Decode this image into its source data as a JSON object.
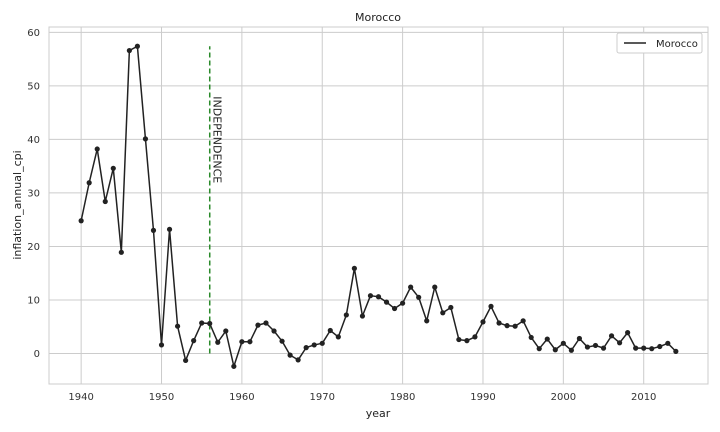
{
  "chart_data": {
    "type": "line",
    "title": "Morocco",
    "xlabel": "year",
    "ylabel": "inflation_annual_cpi",
    "xlim": [
      1936,
      2018
    ],
    "ylim": [
      -5.7,
      61
    ],
    "xticks": [
      1940,
      1950,
      1960,
      1970,
      1980,
      1990,
      2000,
      2010
    ],
    "yticks": [
      0,
      10,
      20,
      30,
      40,
      50,
      60
    ],
    "grid": true,
    "legend_position": "top-right",
    "series": [
      {
        "name": "Morocco",
        "color": "#222222",
        "marker": "circle",
        "x": [
          1940,
          1941,
          1942,
          1943,
          1944,
          1945,
          1946,
          1947,
          1948,
          1949,
          1950,
          1951,
          1952,
          1953,
          1954,
          1955,
          1956,
          1957,
          1958,
          1959,
          1960,
          1961,
          1962,
          1963,
          1964,
          1965,
          1966,
          1967,
          1968,
          1969,
          1970,
          1971,
          1972,
          1973,
          1974,
          1975,
          1976,
          1977,
          1978,
          1979,
          1980,
          1981,
          1982,
          1983,
          1984,
          1985,
          1986,
          1987,
          1988,
          1989,
          1990,
          1991,
          1992,
          1993,
          1994,
          1995,
          1996,
          1997,
          1998,
          1999,
          2000,
          2001,
          2002,
          2003,
          2004,
          2005,
          2006,
          2007,
          2008,
          2009,
          2010,
          2011,
          2012,
          2013,
          2014
        ],
        "y": [
          24.8,
          31.9,
          38.2,
          28.4,
          34.6,
          18.9,
          56.6,
          57.4,
          40.1,
          23.0,
          1.6,
          23.2,
          5.1,
          -1.3,
          2.4,
          5.7,
          5.6,
          2.1,
          4.2,
          -2.4,
          2.2,
          2.2,
          5.3,
          5.7,
          4.2,
          2.3,
          -0.3,
          -1.2,
          1.1,
          1.6,
          1.9,
          4.3,
          3.1,
          7.2,
          15.9,
          7.0,
          10.8,
          10.6,
          9.6,
          8.4,
          9.4,
          12.4,
          10.5,
          6.1,
          12.4,
          7.6,
          8.6,
          2.6,
          2.4,
          3.1,
          5.9,
          8.8,
          5.7,
          5.2,
          5.1,
          6.1,
          3.0,
          0.9,
          2.7,
          0.7,
          1.9,
          0.6,
          2.8,
          1.2,
          1.5,
          1.0,
          3.3,
          2.0,
          3.9,
          1.0,
          1.0,
          0.9,
          1.3,
          1.9,
          0.4
        ]
      }
    ],
    "annotations": [
      {
        "type": "vline",
        "x": 1956,
        "y_from": 0,
        "y_to": 57.4,
        "color": "#2a8a2a",
        "style": "dashed",
        "text": "INDEPENDENCE"
      }
    ]
  }
}
